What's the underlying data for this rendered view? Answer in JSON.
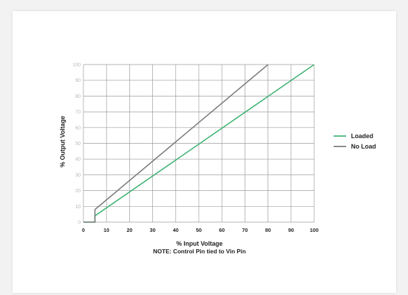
{
  "chart_data": {
    "type": "line",
    "xlabel": "% Input Voltage",
    "ylabel": "% Output Voltage",
    "note": "NOTE: Control Pin tied to Vin Pin",
    "xlim": [
      0,
      100
    ],
    "ylim": [
      0,
      100
    ],
    "x_ticks": [
      "0",
      "10",
      "20",
      "30",
      "40",
      "50",
      "60",
      "70",
      "80",
      "90",
      "100"
    ],
    "y_ticks": [
      "0",
      "10",
      "20",
      "30",
      "40",
      "50",
      "60",
      "70",
      "80",
      "90",
      "100"
    ],
    "grid": true,
    "legend_position": "right",
    "series": [
      {
        "name": "Loaded",
        "color": "#3cb371",
        "points": [
          [
            0,
            0
          ],
          [
            5,
            0
          ],
          [
            5,
            4
          ],
          [
            100,
            100
          ]
        ]
      },
      {
        "name": "No Load",
        "color": "#7a7a7a",
        "points": [
          [
            0,
            0
          ],
          [
            5,
            0
          ],
          [
            5,
            8
          ],
          [
            80,
            100
          ]
        ]
      }
    ]
  }
}
